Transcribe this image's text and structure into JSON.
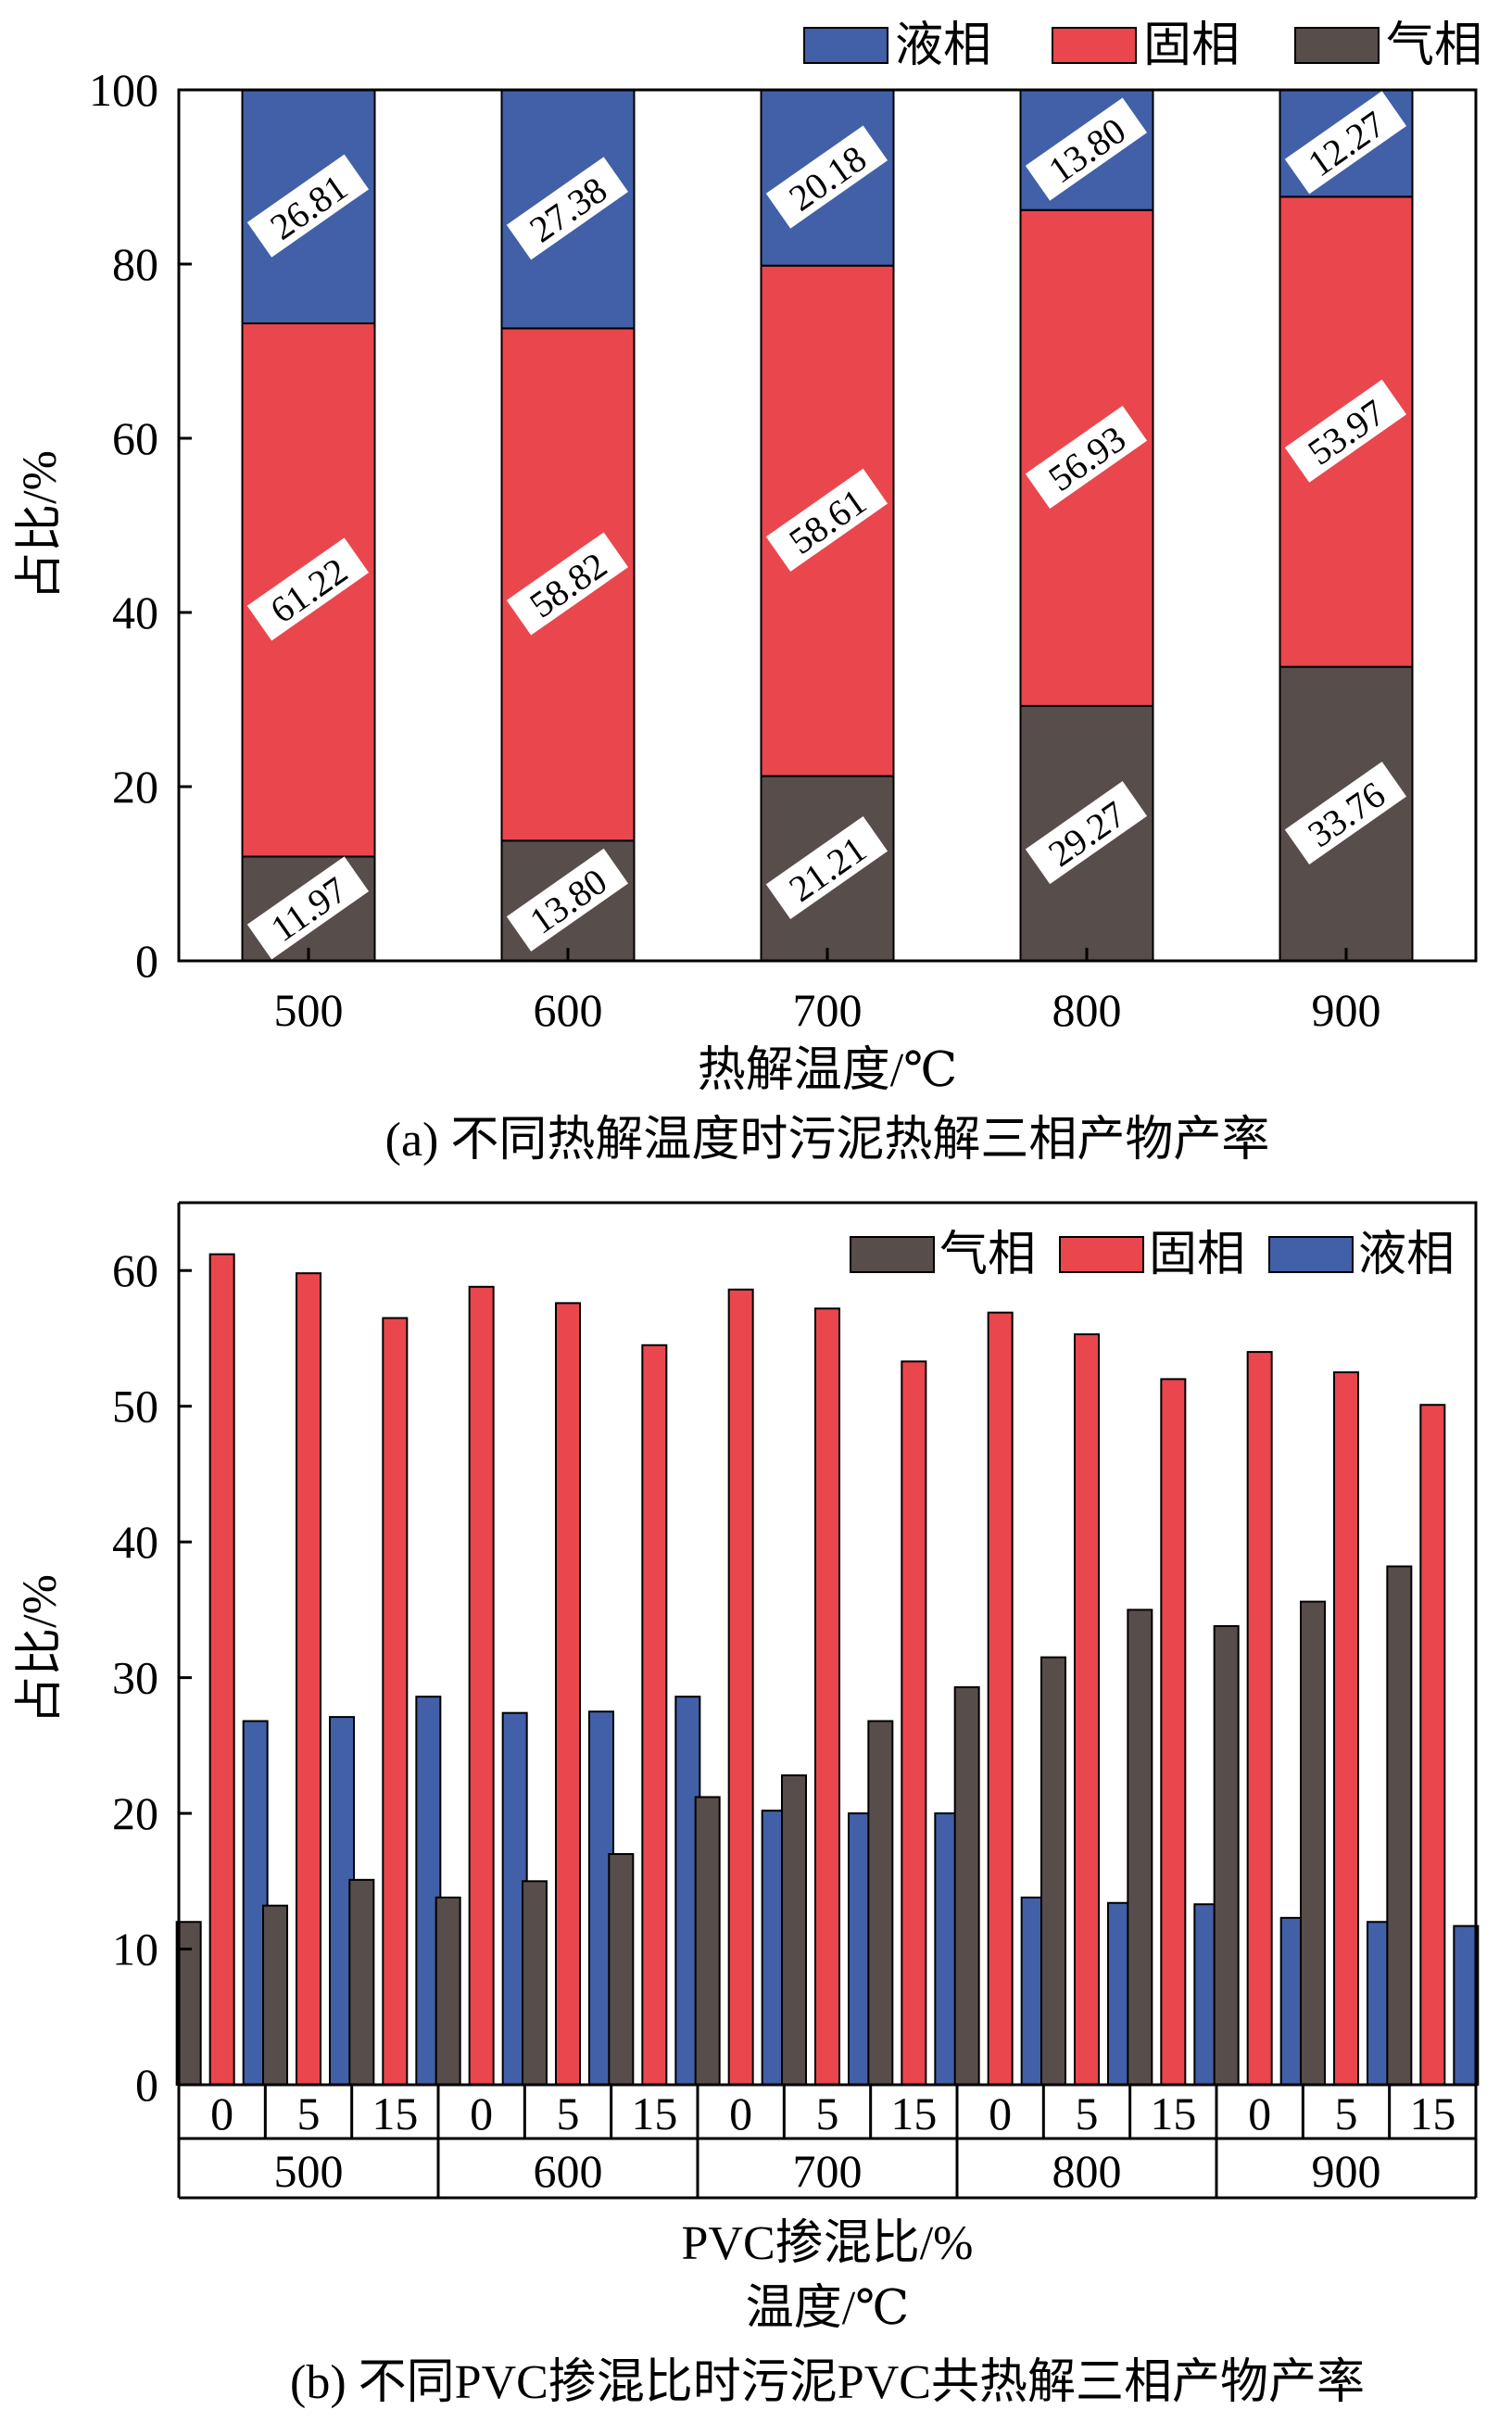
{
  "chart_data": [
    {
      "id": "a",
      "type": "stacked-bar",
      "categories": [
        "500",
        "600",
        "700",
        "800",
        "900"
      ],
      "series": [
        {
          "name": "气相",
          "color": "#574d4a",
          "values": [
            11.97,
            13.8,
            21.21,
            29.27,
            33.76
          ]
        },
        {
          "name": "固相",
          "color": "#e9474d",
          "values": [
            61.22,
            58.82,
            58.61,
            56.93,
            53.97
          ]
        },
        {
          "name": "液相",
          "color": "#4160a7",
          "values": [
            26.81,
            27.38,
            20.18,
            13.8,
            12.27
          ]
        }
      ],
      "segment_labels": [
        [
          "11.97",
          "13.80",
          "21.21",
          "29.27",
          "33.76"
        ],
        [
          "61.22",
          "58.82",
          "58.61",
          "56.93",
          "53.97"
        ],
        [
          "26.81",
          "27.38",
          "20.18",
          "13.80",
          "12.27"
        ]
      ],
      "legend": [
        "液相",
        "固相",
        "气相"
      ],
      "ylim": [
        0,
        100
      ],
      "yticks": [
        "0",
        "20",
        "40",
        "60",
        "80",
        "100"
      ],
      "ylabel": "占比/%",
      "xlabel": "热解温度/℃",
      "caption": "(a) 不同热解温度时污泥热解三相产物产率"
    },
    {
      "id": "b",
      "type": "grouped-bar",
      "temperatures": [
        "500",
        "600",
        "700",
        "800",
        "900"
      ],
      "pvc_ratios": [
        "0",
        "5",
        "15"
      ],
      "series": [
        {
          "name": "气相",
          "color": "#574d4a",
          "values": [
            12.0,
            13.2,
            15.1,
            13.8,
            15.0,
            17.0,
            21.2,
            22.8,
            26.8,
            29.3,
            31.5,
            35.0,
            33.8,
            35.6,
            38.2
          ]
        },
        {
          "name": "固相",
          "color": "#e9474d",
          "values": [
            61.2,
            59.8,
            56.5,
            58.8,
            57.6,
            54.5,
            58.6,
            57.2,
            53.3,
            56.9,
            55.3,
            52.0,
            54.0,
            52.5,
            50.1
          ]
        },
        {
          "name": "液相",
          "color": "#4160a7",
          "values": [
            26.8,
            27.1,
            28.6,
            27.4,
            27.5,
            28.6,
            20.2,
            20.0,
            20.0,
            13.8,
            13.4,
            13.3,
            12.3,
            12.0,
            11.7
          ]
        }
      ],
      "legend": [
        "气相",
        "固相",
        "液相"
      ],
      "ylim": [
        0,
        65
      ],
      "yticks": [
        "0",
        "10",
        "20",
        "30",
        "40",
        "50",
        "60"
      ],
      "ylabel": "占比/%",
      "xlabel_1": "PVC掺混比/%",
      "xlabel_2": "温度/℃",
      "caption": "(b) 不同PVC掺混比时污泥PVC共热解三相产物产率"
    }
  ]
}
